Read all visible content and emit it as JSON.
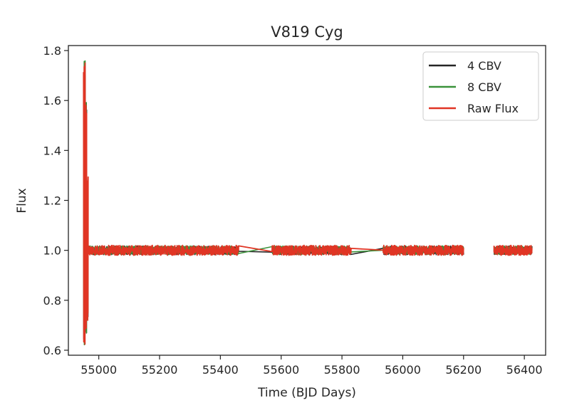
{
  "chart_data": {
    "type": "line",
    "title": "V819 Cyg",
    "xlabel": "Time (BJD Days)",
    "ylabel": "Flux",
    "xlim": [
      54900,
      56470
    ],
    "ylim": [
      0.58,
      1.82
    ],
    "xticks": [
      55000,
      55200,
      55400,
      55600,
      55800,
      56000,
      56200,
      56400
    ],
    "yticks": [
      0.6,
      0.8,
      1.0,
      1.2,
      1.4,
      1.6,
      1.8
    ],
    "ytick_labels": [
      "0.6",
      "0.8",
      "1.0",
      "1.2",
      "1.4",
      "1.6",
      "1.8"
    ],
    "grid": false,
    "legend_position": "upper right",
    "observing_segments": [
      [
        54965,
        55460
      ],
      [
        55570,
        55830
      ],
      [
        55935,
        56200
      ],
      [
        56300,
        56425
      ]
    ],
    "flare": {
      "x_range": [
        54950,
        54965
      ],
      "peak_values": [
        1.76,
        1.6,
        1.3
      ],
      "trough_values": [
        0.62,
        0.66,
        0.72
      ]
    },
    "baseline_flux": 1.0,
    "series": [
      {
        "name": "4 CBV",
        "color": "#262626"
      },
      {
        "name": "8 CBV",
        "color": "#3a923a"
      },
      {
        "name": "Raw Flux",
        "color": "#e03524"
      }
    ]
  }
}
